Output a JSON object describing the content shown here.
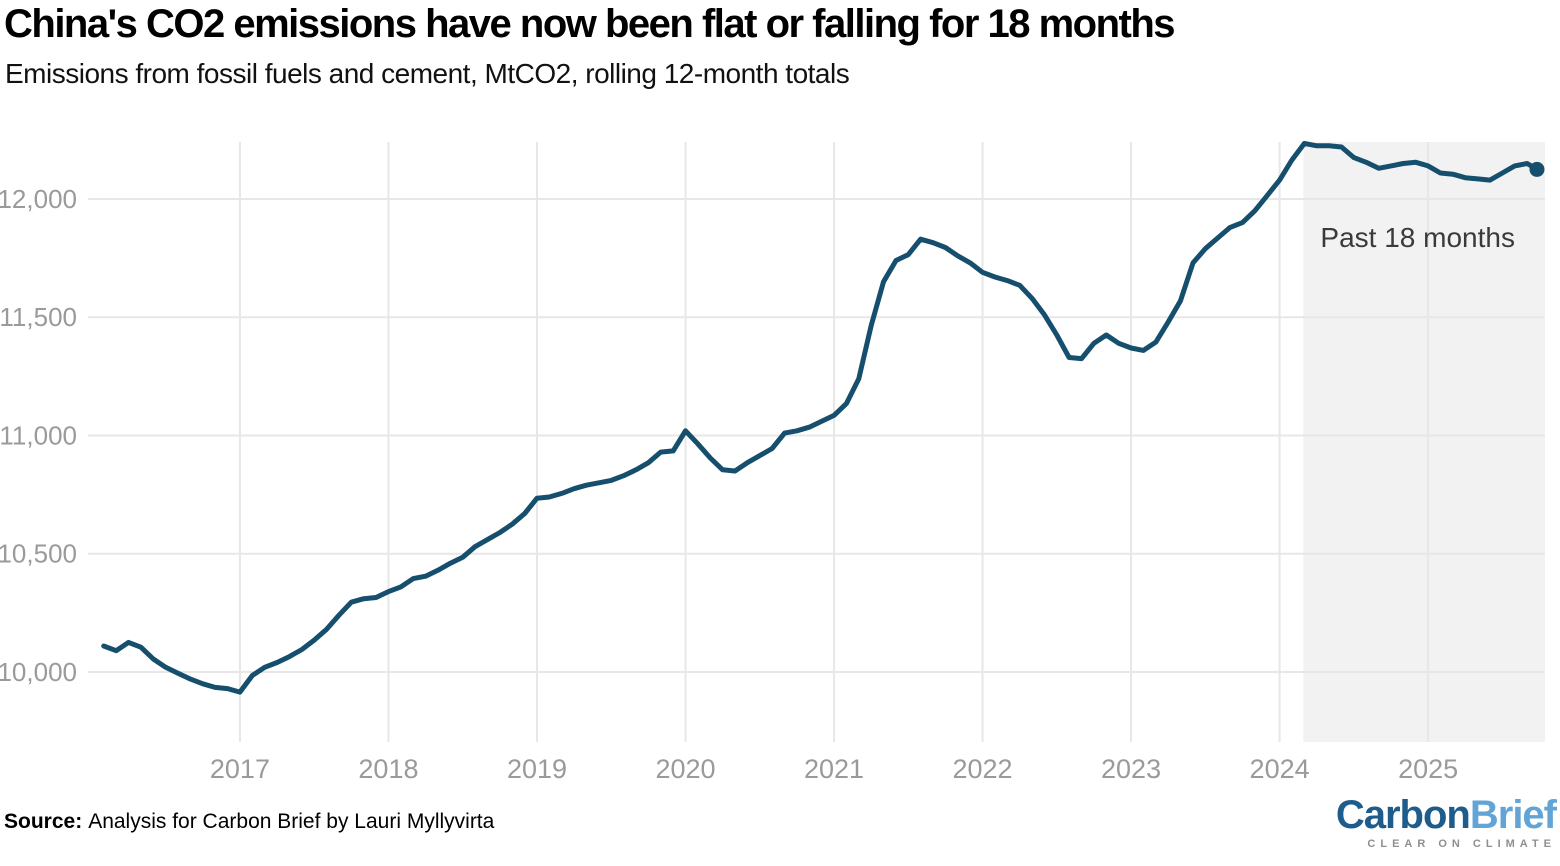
{
  "header": {
    "title": "China's CO2 emissions have now been flat or falling for 18 months",
    "subtitle": "Emissions from fossil fuels and cement, MtCO2, rolling 12-month totals"
  },
  "footer": {
    "source_label": "Source:",
    "source_text": "Analysis for Carbon Brief by Lauri Myllyvirta"
  },
  "logo": {
    "part1": "Carbon",
    "part2": "Brief",
    "tagline": "CLEAR ON CLIMATE",
    "dark_color": "#1e5c8b",
    "light_color": "#63a4d7",
    "tagline_color": "#8f8f8f"
  },
  "chart_data": {
    "type": "line",
    "title": "China's CO2 emissions have now been flat or falling for 18 months",
    "subtitle": "Emissions from fossil fuels and cement, MtCO2, rolling 12-month totals",
    "xlabel": "",
    "ylabel": "MtCO2, rolling 12-month totals",
    "xlim": [
      2015.977,
      2025.787
    ],
    "ylim": [
      9704,
      12241
    ],
    "grid": true,
    "legend_position": "none",
    "line_color": "#164f6d",
    "grid_color": "#e7e7e7",
    "tick_color": "#9a9a9a",
    "highlight_label_color": "#3a3a3a",
    "yticks": [
      10000,
      10500,
      11000,
      11500,
      12000
    ],
    "ytick_labels": [
      "10,000",
      "10,500",
      "11,000",
      "11,500",
      "12,000"
    ],
    "xticks": [
      2017,
      2018,
      2019,
      2020,
      2021,
      2022,
      2023,
      2024,
      2025
    ],
    "xtick_labels": [
      "2017",
      "2018",
      "2019",
      "2020",
      "2021",
      "2022",
      "2023",
      "2024",
      "2025"
    ],
    "highlight": {
      "label": "Past 18 months",
      "x_start": 2024.16,
      "fill": "#f2f2f2",
      "label_x": 2024.93,
      "label_y": 11840
    },
    "endpoint_dot": true,
    "series": [
      {
        "name": "China CO2 emissions from fossil fuels and cement (MtCO2, rolling 12-month total)",
        "points": [
          [
            2016.083,
            10110
          ],
          [
            2016.167,
            10090
          ],
          [
            2016.25,
            10125
          ],
          [
            2016.333,
            10105
          ],
          [
            2016.417,
            10055
          ],
          [
            2016.5,
            10020
          ],
          [
            2016.583,
            9995
          ],
          [
            2016.667,
            9970
          ],
          [
            2016.75,
            9950
          ],
          [
            2016.833,
            9935
          ],
          [
            2016.917,
            9930
          ],
          [
            2017.0,
            9915
          ],
          [
            2017.083,
            9985
          ],
          [
            2017.167,
            10020
          ],
          [
            2017.25,
            10040
          ],
          [
            2017.333,
            10065
          ],
          [
            2017.417,
            10095
          ],
          [
            2017.5,
            10135
          ],
          [
            2017.583,
            10180
          ],
          [
            2017.667,
            10240
          ],
          [
            2017.75,
            10295
          ],
          [
            2017.833,
            10310
          ],
          [
            2017.917,
            10315
          ],
          [
            2018.0,
            10340
          ],
          [
            2018.083,
            10360
          ],
          [
            2018.167,
            10395
          ],
          [
            2018.25,
            10405
          ],
          [
            2018.333,
            10430
          ],
          [
            2018.417,
            10460
          ],
          [
            2018.5,
            10485
          ],
          [
            2018.583,
            10530
          ],
          [
            2018.667,
            10560
          ],
          [
            2018.75,
            10590
          ],
          [
            2018.833,
            10625
          ],
          [
            2018.917,
            10670
          ],
          [
            2019.0,
            10735
          ],
          [
            2019.083,
            10740
          ],
          [
            2019.167,
            10755
          ],
          [
            2019.25,
            10775
          ],
          [
            2019.333,
            10790
          ],
          [
            2019.417,
            10800
          ],
          [
            2019.5,
            10810
          ],
          [
            2019.583,
            10830
          ],
          [
            2019.667,
            10855
          ],
          [
            2019.75,
            10885
          ],
          [
            2019.833,
            10930
          ],
          [
            2019.917,
            10935
          ],
          [
            2020.0,
            11020
          ],
          [
            2020.083,
            10965
          ],
          [
            2020.167,
            10905
          ],
          [
            2020.25,
            10855
          ],
          [
            2020.333,
            10850
          ],
          [
            2020.417,
            10885
          ],
          [
            2020.5,
            10915
          ],
          [
            2020.583,
            10945
          ],
          [
            2020.667,
            11010
          ],
          [
            2020.75,
            11020
          ],
          [
            2020.833,
            11035
          ],
          [
            2020.917,
            11060
          ],
          [
            2021.0,
            11085
          ],
          [
            2021.083,
            11135
          ],
          [
            2021.167,
            11240
          ],
          [
            2021.25,
            11465
          ],
          [
            2021.333,
            11650
          ],
          [
            2021.417,
            11740
          ],
          [
            2021.5,
            11765
          ],
          [
            2021.583,
            11830
          ],
          [
            2021.667,
            11815
          ],
          [
            2021.75,
            11795
          ],
          [
            2021.833,
            11760
          ],
          [
            2021.917,
            11730
          ],
          [
            2022.0,
            11690
          ],
          [
            2022.083,
            11670
          ],
          [
            2022.167,
            11655
          ],
          [
            2022.25,
            11635
          ],
          [
            2022.333,
            11580
          ],
          [
            2022.417,
            11510
          ],
          [
            2022.5,
            11425
          ],
          [
            2022.583,
            11330
          ],
          [
            2022.667,
            11325
          ],
          [
            2022.75,
            11390
          ],
          [
            2022.833,
            11425
          ],
          [
            2022.917,
            11390
          ],
          [
            2023.0,
            11370
          ],
          [
            2023.083,
            11360
          ],
          [
            2023.167,
            11395
          ],
          [
            2023.25,
            11480
          ],
          [
            2023.333,
            11570
          ],
          [
            2023.417,
            11730
          ],
          [
            2023.5,
            11790
          ],
          [
            2023.583,
            11835
          ],
          [
            2023.667,
            11880
          ],
          [
            2023.75,
            11900
          ],
          [
            2023.833,
            11950
          ],
          [
            2023.917,
            12015
          ],
          [
            2024.0,
            12080
          ],
          [
            2024.083,
            12165
          ],
          [
            2024.167,
            12235
          ],
          [
            2024.25,
            12225
          ],
          [
            2024.333,
            12225
          ],
          [
            2024.417,
            12220
          ],
          [
            2024.5,
            12175
          ],
          [
            2024.583,
            12155
          ],
          [
            2024.667,
            12130
          ],
          [
            2024.75,
            12140
          ],
          [
            2024.833,
            12150
          ],
          [
            2024.917,
            12155
          ],
          [
            2025.0,
            12140
          ],
          [
            2025.083,
            12110
          ],
          [
            2025.167,
            12105
          ],
          [
            2025.25,
            12090
          ],
          [
            2025.333,
            12085
          ],
          [
            2025.417,
            12080
          ],
          [
            2025.5,
            12110
          ],
          [
            2025.583,
            12140
          ],
          [
            2025.667,
            12150
          ],
          [
            2025.733,
            12125
          ]
        ]
      }
    ]
  }
}
